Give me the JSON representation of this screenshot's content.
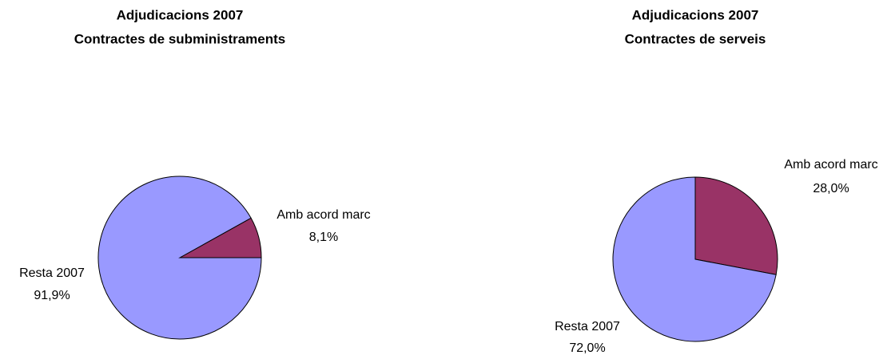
{
  "chart_data": [
    {
      "type": "pie",
      "title": "Adjudicacions 2007",
      "subtitle": "Contractes de subministraments",
      "categories": [
        "Amb acord marc",
        "Resta 2007"
      ],
      "values": [
        8.1,
        91.9
      ],
      "value_labels": [
        "8,1%",
        "91,9%"
      ],
      "colors": [
        "#993366",
        "#9999ff"
      ]
    },
    {
      "type": "pie",
      "title": "Adjudicacions 2007",
      "subtitle": "Contractes de serveis",
      "categories": [
        "Amb acord marc",
        "Resta 2007"
      ],
      "values": [
        28.0,
        72.0
      ],
      "value_labels": [
        "28,0%",
        "72,0%"
      ],
      "colors": [
        "#993366",
        "#9999ff"
      ]
    }
  ]
}
